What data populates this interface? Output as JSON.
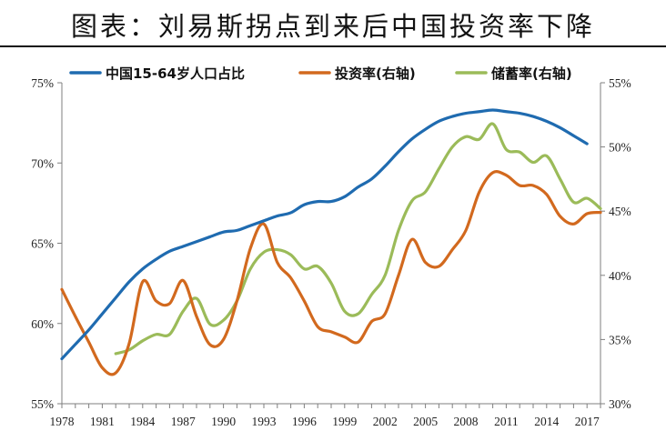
{
  "title": "图表：刘易斯拐点到来后中国投资率下降",
  "chart_data": {
    "type": "line",
    "title": "图表：刘易斯拐点到来后中国投资率下降",
    "x_ticks": [
      "1978",
      "1981",
      "1984",
      "1987",
      "1990",
      "1993",
      "1996",
      "1999",
      "2002",
      "2005",
      "2008",
      "2011",
      "2014",
      "2017"
    ],
    "x_range": [
      1978,
      2018
    ],
    "y_left": {
      "range": [
        55,
        75
      ],
      "ticks": [
        "55%",
        "60%",
        "65%",
        "70%",
        "75%"
      ],
      "tick_values": [
        55,
        60,
        65,
        70,
        75
      ]
    },
    "y_right": {
      "range": [
        30,
        55
      ],
      "ticks": [
        "30%",
        "35%",
        "40%",
        "45%",
        "50%",
        "55%"
      ],
      "tick_values": [
        30,
        35,
        40,
        45,
        50,
        55
      ]
    },
    "grid": false,
    "legend_position": "top",
    "series": [
      {
        "name": "中国15-64岁人口占比",
        "axis": "left",
        "color": "#1f6bb0",
        "points": [
          [
            1978,
            57.8
          ],
          [
            1979,
            58.7
          ],
          [
            1980,
            59.6
          ],
          [
            1981,
            60.6
          ],
          [
            1982,
            61.6
          ],
          [
            1983,
            62.6
          ],
          [
            1984,
            63.4
          ],
          [
            1985,
            64.0
          ],
          [
            1986,
            64.5
          ],
          [
            1987,
            64.8
          ],
          [
            1988,
            65.1
          ],
          [
            1989,
            65.4
          ],
          [
            1990,
            65.7
          ],
          [
            1991,
            65.8
          ],
          [
            1992,
            66.1
          ],
          [
            1993,
            66.4
          ],
          [
            1994,
            66.7
          ],
          [
            1995,
            66.9
          ],
          [
            1996,
            67.4
          ],
          [
            1997,
            67.6
          ],
          [
            1998,
            67.6
          ],
          [
            1999,
            67.9
          ],
          [
            2000,
            68.5
          ],
          [
            2001,
            69.0
          ],
          [
            2002,
            69.8
          ],
          [
            2003,
            70.7
          ],
          [
            2004,
            71.5
          ],
          [
            2005,
            72.1
          ],
          [
            2006,
            72.6
          ],
          [
            2007,
            72.9
          ],
          [
            2008,
            73.1
          ],
          [
            2009,
            73.2
          ],
          [
            2010,
            73.3
          ],
          [
            2011,
            73.2
          ],
          [
            2012,
            73.1
          ],
          [
            2013,
            72.9
          ],
          [
            2014,
            72.6
          ],
          [
            2015,
            72.2
          ],
          [
            2016,
            71.7
          ],
          [
            2017,
            71.2
          ]
        ]
      },
      {
        "name": "投资率(右轴)",
        "axis": "right",
        "color": "#d2691e",
        "points": [
          [
            1978,
            38.9
          ],
          [
            1979,
            36.8
          ],
          [
            1980,
            34.8
          ],
          [
            1981,
            32.8
          ],
          [
            1982,
            32.4
          ],
          [
            1983,
            34.7
          ],
          [
            1984,
            39.5
          ],
          [
            1985,
            38.0
          ],
          [
            1986,
            37.8
          ],
          [
            1987,
            39.6
          ],
          [
            1988,
            36.8
          ],
          [
            1989,
            34.6
          ],
          [
            1990,
            35.0
          ],
          [
            1991,
            38.0
          ],
          [
            1992,
            42.1
          ],
          [
            1993,
            44.0
          ],
          [
            1994,
            41.0
          ],
          [
            1995,
            39.8
          ],
          [
            1996,
            38.0
          ],
          [
            1997,
            36.0
          ],
          [
            1998,
            35.6
          ],
          [
            1999,
            35.2
          ],
          [
            2000,
            34.8
          ],
          [
            2001,
            36.4
          ],
          [
            2002,
            37.0
          ],
          [
            2003,
            40.0
          ],
          [
            2004,
            42.8
          ],
          [
            2005,
            41.0
          ],
          [
            2006,
            40.7
          ],
          [
            2007,
            42.0
          ],
          [
            2008,
            43.5
          ],
          [
            2009,
            46.5
          ],
          [
            2010,
            48.0
          ],
          [
            2011,
            47.8
          ],
          [
            2012,
            47.0
          ],
          [
            2013,
            47.0
          ],
          [
            2014,
            46.3
          ],
          [
            2015,
            44.6
          ],
          [
            2016,
            44.0
          ],
          [
            2017,
            44.8
          ],
          [
            2018,
            44.9
          ]
        ]
      },
      {
        "name": "储蓄率(右轴)",
        "axis": "right",
        "color": "#9bbb59",
        "points": [
          [
            1982,
            33.9
          ],
          [
            1983,
            34.2
          ],
          [
            1984,
            34.9
          ],
          [
            1985,
            35.4
          ],
          [
            1986,
            35.4
          ],
          [
            1987,
            37.2
          ],
          [
            1988,
            38.2
          ],
          [
            1989,
            36.2
          ],
          [
            1990,
            36.5
          ],
          [
            1991,
            38.0
          ],
          [
            1992,
            40.5
          ],
          [
            1993,
            41.8
          ],
          [
            1994,
            42.0
          ],
          [
            1995,
            41.6
          ],
          [
            1996,
            40.5
          ],
          [
            1997,
            40.7
          ],
          [
            1998,
            39.4
          ],
          [
            1999,
            37.2
          ],
          [
            2000,
            37.0
          ],
          [
            2001,
            38.5
          ],
          [
            2002,
            40.0
          ],
          [
            2003,
            43.5
          ],
          [
            2004,
            45.8
          ],
          [
            2005,
            46.5
          ],
          [
            2006,
            48.3
          ],
          [
            2007,
            50.0
          ],
          [
            2008,
            50.8
          ],
          [
            2009,
            50.6
          ],
          [
            2010,
            51.8
          ],
          [
            2011,
            49.8
          ],
          [
            2012,
            49.6
          ],
          [
            2013,
            48.8
          ],
          [
            2014,
            49.3
          ],
          [
            2015,
            47.5
          ],
          [
            2016,
            45.7
          ],
          [
            2017,
            46.0
          ],
          [
            2018,
            45.2
          ]
        ]
      }
    ]
  }
}
